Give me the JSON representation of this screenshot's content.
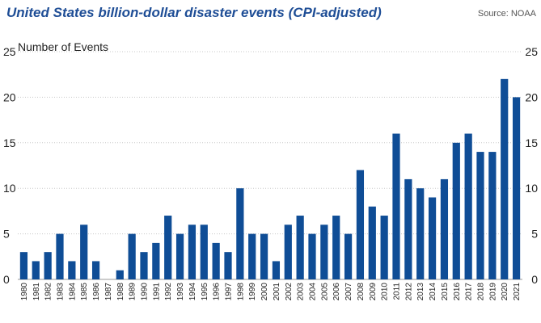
{
  "title": "United States billion-dollar disaster events (CPI-adjusted)",
  "source": "Source: NOAA",
  "chart_data": {
    "type": "bar",
    "ylabel": "Number of Events",
    "ylim": [
      0,
      25
    ],
    "yticks": [
      0,
      5,
      10,
      15,
      20,
      25
    ],
    "grid": true,
    "bar_color": "#0f4d96",
    "grid_color": "#c8c8c8",
    "categories": [
      "1980",
      "1981",
      "1982",
      "1983",
      "1984",
      "1985",
      "1986",
      "1987",
      "1988",
      "1989",
      "1990",
      "1991",
      "1992",
      "1993",
      "1994",
      "1995",
      "1996",
      "1997",
      "1998",
      "1999",
      "2000",
      "2001",
      "2002",
      "2003",
      "2004",
      "2005",
      "2006",
      "2007",
      "2008",
      "2009",
      "2010",
      "2011",
      "2012",
      "2013",
      "2014",
      "2015",
      "2016",
      "2017",
      "2018",
      "2019",
      "2020",
      "2021"
    ],
    "values": [
      3,
      2,
      3,
      5,
      2,
      6,
      2,
      0,
      1,
      5,
      3,
      4,
      7,
      5,
      6,
      6,
      4,
      3,
      10,
      5,
      5,
      2,
      6,
      7,
      5,
      6,
      7,
      5,
      12,
      8,
      7,
      16,
      11,
      10,
      9,
      11,
      15,
      16,
      14,
      14,
      22,
      20
    ]
  }
}
